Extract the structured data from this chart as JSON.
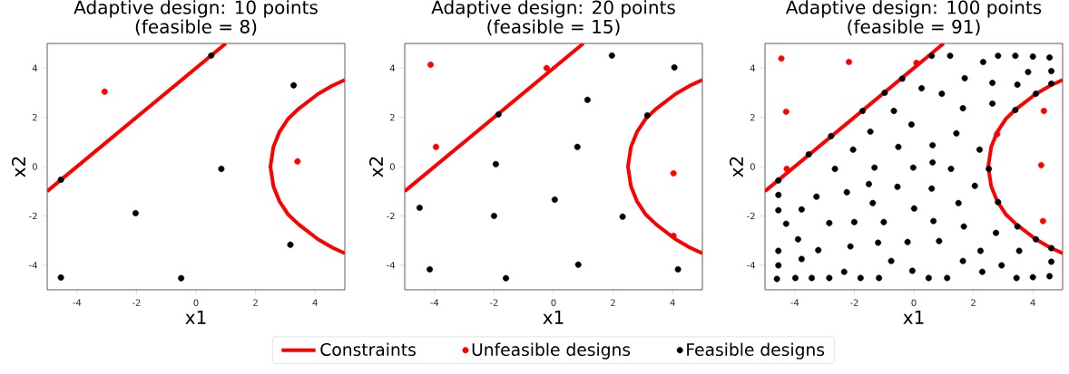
{
  "chart_data": [
    {
      "type": "scatter",
      "title": "Adaptive design: 10 points",
      "subtitle": "(feasible = 8)",
      "xlabel": "x1",
      "ylabel": "x2",
      "xlim": [
        -5,
        5
      ],
      "ylim": [
        -5,
        5
      ],
      "xticks": [
        -4,
        -2,
        0,
        2,
        4
      ],
      "yticks": [
        -4,
        -2,
        0,
        2,
        4
      ],
      "grid": false,
      "series": [
        {
          "type": "line",
          "marker": "none",
          "line_style": "solid",
          "color": "#ff0000",
          "x": [
            -5,
            1
          ],
          "values": [
            -1,
            5
          ]
        },
        {
          "type": "line",
          "marker": "none",
          "line_style": "solid",
          "color": "#ff0000",
          "x": [
            5,
            4.6,
            4.1,
            3.45,
            3.1,
            2.8,
            2.6,
            2.5,
            2.6,
            2.8,
            3.1,
            3.45,
            4.1,
            4.6,
            5
          ],
          "values": [
            -3.52,
            -3.3,
            -2.95,
            -2.35,
            -1.95,
            -1.4,
            -0.8,
            0,
            0.8,
            1.4,
            1.95,
            2.35,
            2.95,
            3.3,
            3.52
          ]
        },
        {
          "marker": "circle",
          "color": "#ff0000",
          "x": [
            -3.07,
            3.41
          ],
          "values": [
            3.04,
            0.21
          ]
        },
        {
          "marker": "circle",
          "color": "#000000",
          "x": [
            0.51,
            3.28,
            -4.54,
            0.85,
            -2.03,
            3.17,
            -4.54,
            -0.5
          ],
          "values": [
            4.51,
            3.3,
            -0.53,
            -0.09,
            -1.89,
            -3.17,
            -4.5,
            -4.53
          ]
        }
      ]
    },
    {
      "type": "scatter",
      "title": "Adaptive design: 20 points",
      "subtitle": "(feasible = 15)",
      "xlabel": "x1",
      "ylabel": "x2",
      "xlim": [
        -5,
        5
      ],
      "ylim": [
        -5,
        5
      ],
      "xticks": [
        -4,
        -2,
        0,
        2,
        4
      ],
      "yticks": [
        -4,
        -2,
        0,
        2,
        4
      ],
      "grid": false,
      "legend": "bottom",
      "series": [
        {
          "type": "line",
          "marker": "none",
          "line_style": "solid",
          "name": "Constraints",
          "color": "#ff0000",
          "x": [
            -5,
            1
          ],
          "values": [
            -1,
            5
          ]
        },
        {
          "type": "line",
          "marker": "none",
          "line_style": "solid",
          "color": "#ff0000",
          "x": [
            5,
            4.6,
            4.1,
            3.45,
            3.1,
            2.8,
            2.6,
            2.5,
            2.6,
            2.8,
            3.1,
            3.45,
            4.1,
            4.6,
            5
          ],
          "values": [
            -3.52,
            -3.3,
            -2.95,
            -2.35,
            -1.95,
            -1.4,
            -0.8,
            0,
            0.8,
            1.4,
            1.95,
            2.35,
            2.95,
            3.3,
            3.52
          ]
        },
        {
          "marker": "circle",
          "name": "Unfeasible designs",
          "color": "#ff0000",
          "x": [
            -4.13,
            -3.95,
            -0.23,
            4.03,
            4.03
          ],
          "values": [
            4.14,
            0.8,
            4.0,
            -0.27,
            -2.81
          ]
        },
        {
          "marker": "circle",
          "name": "Feasible designs",
          "color": "#000000",
          "x": [
            1.96,
            4.06,
            1.14,
            -1.85,
            3.15,
            0.8,
            -1.94,
            -4.5,
            0.04,
            -2.0,
            2.32,
            -4.16,
            0.83,
            -1.6,
            4.18
          ],
          "values": [
            4.51,
            4.03,
            2.71,
            2.12,
            2.08,
            0.8,
            0.1,
            -1.67,
            -1.34,
            -2.0,
            -2.03,
            -4.17,
            -3.98,
            -4.53,
            -4.17
          ]
        }
      ]
    },
    {
      "type": "scatter",
      "title": "Adaptive design: 100 points",
      "subtitle": "(feasible = 91)",
      "xlabel": "x1",
      "ylabel": "x2",
      "xlim": [
        -5,
        5
      ],
      "ylim": [
        -5,
        5
      ],
      "xticks": [
        -4,
        -2,
        0,
        2,
        4
      ],
      "yticks": [
        -4,
        -2,
        0,
        2,
        4
      ],
      "grid": false,
      "series": [
        {
          "type": "line",
          "marker": "none",
          "line_style": "solid",
          "color": "#ff0000",
          "x": [
            -5,
            1
          ],
          "values": [
            -1,
            5
          ]
        },
        {
          "type": "line",
          "marker": "none",
          "line_style": "solid",
          "color": "#ff0000",
          "x": [
            5,
            4.6,
            4.1,
            3.45,
            3.1,
            2.8,
            2.6,
            2.5,
            2.6,
            2.8,
            3.1,
            3.45,
            4.1,
            4.6,
            5
          ],
          "values": [
            -3.52,
            -3.3,
            -2.95,
            -2.35,
            -1.95,
            -1.4,
            -0.8,
            0,
            0.8,
            1.4,
            1.95,
            2.35,
            2.95,
            3.3,
            3.52
          ]
        },
        {
          "marker": "circle",
          "color": "#ff0000",
          "x": [
            -4.45,
            -2.18,
            -4.29,
            -4.27,
            0.09,
            2.8,
            4.37,
            4.28,
            4.34
          ],
          "values": [
            4.39,
            4.25,
            2.23,
            -0.09,
            4.21,
            1.32,
            2.26,
            0.06,
            -2.21
          ]
        },
        {
          "marker": "circle",
          "color": "#000000",
          "x": [
            -0.39,
            -0.98,
            -1.72,
            -2.78,
            -3.53,
            -4.55,
            -0.67,
            -0.08,
            -1.46,
            -0.52,
            -2.04,
            -2.65,
            -1.32,
            -0.02,
            -1.51,
            -0.55,
            -2.25,
            -3.27,
            -1.38,
            -4.55,
            -3.77,
            -4.55,
            -4.29,
            -2.84,
            -2.0,
            -1.01,
            -3.89,
            -3.21,
            -2.13,
            -1.2,
            -0.21,
            -4.55,
            -3.77,
            -0.76,
            -0.05,
            -4.55,
            -2.34,
            -4.6,
            -3.98,
            -3.43,
            -2.84,
            -1.79,
            -1.17,
            0.6,
            1.22,
            2.33,
            2.83,
            3.41,
            4.0,
            4.56,
            3.84,
            4.62,
            4.62,
            4.1,
            3.48,
            2.64,
            1.71,
            0.26,
            0.94,
            1.65,
            2.64,
            3.41,
            1.43,
            0.63,
            2.21,
            0.63,
            1.25,
            2.52,
            2.05,
            0.6,
            0.01,
            1.5,
            2.83,
            0.66,
            1.68,
            3.48,
            2.76,
            0.85,
            4.1,
            4.62,
            2.24,
            3.54,
            4.62,
            1.65,
            2.95,
            2.3,
            0.5,
            1.12,
            3.45,
            4.0,
            4.56
          ],
          "values": [
            3.57,
            3.0,
            2.26,
            1.24,
            0.5,
            -0.56,
            2.26,
            1.71,
            1.42,
            0.8,
            0.69,
            -0.09,
            -0.04,
            -0.04,
            -0.71,
            -0.82,
            -1.04,
            -1.22,
            -1.48,
            -1.15,
            -1.74,
            -1.77,
            -2.32,
            -2.29,
            -2.25,
            -2.25,
            -2.95,
            -3.39,
            -3.24,
            -3.09,
            -3.06,
            -3.42,
            -3.75,
            -3.83,
            -4.23,
            -4.01,
            -4.27,
            -4.56,
            -4.52,
            -4.52,
            -4.52,
            -4.52,
            -4.52,
            4.5,
            4.5,
            4.25,
            4.5,
            4.5,
            4.47,
            4.43,
            3.84,
            3.88,
            3.37,
            2.96,
            3.33,
            3.4,
            3.59,
            3.18,
            2.96,
            2.37,
            2.56,
            2.3,
            1.35,
            0.87,
            0.69,
            0.17,
            -0.09,
            -0.09,
            -0.78,
            -0.89,
            -1.7,
            -1.48,
            -1.44,
            -2.21,
            -2.43,
            -2.43,
            -2.69,
            -3.02,
            -2.95,
            -3.31,
            -3.42,
            -3.42,
            -3.86,
            -3.83,
            -4.01,
            -4.27,
            -4.52,
            -4.52,
            -4.52,
            -4.49,
            -4.45
          ]
        }
      ]
    }
  ]
}
